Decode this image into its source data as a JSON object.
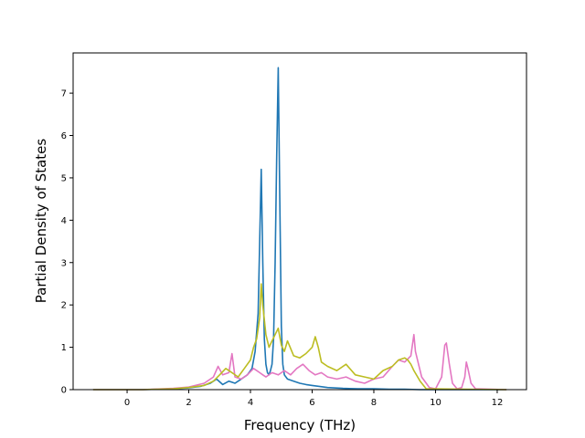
{
  "chart_data": {
    "type": "line",
    "title": "",
    "xlabel": "Frequency (THz)",
    "ylabel": "Partial Density of States",
    "xlim": [
      -1.75,
      12.95
    ],
    "ylim": [
      0,
      7.95
    ],
    "xticks": [
      0,
      2,
      4,
      6,
      8,
      10,
      12
    ],
    "yticks": [
      0,
      1,
      2,
      3,
      4,
      5,
      6,
      7
    ],
    "grid": false,
    "legend": "none",
    "series": [
      {
        "color": "#1f77b4",
        "x": [
          -1.1,
          0.5,
          1.5,
          2.0,
          2.4,
          2.7,
          2.9,
          3.1,
          3.3,
          3.5,
          3.7,
          3.9,
          4.05,
          4.15,
          4.25,
          4.3,
          4.35,
          4.4,
          4.45,
          4.5,
          4.55,
          4.6,
          4.65,
          4.7,
          4.75,
          4.8,
          4.85,
          4.9,
          4.95,
          5.0,
          5.05,
          5.1,
          5.2,
          5.4,
          5.6,
          5.8,
          6.0,
          6.2,
          6.5,
          7.0,
          7.5,
          8.0,
          8.5,
          9.0,
          9.5,
          10.0,
          12.3
        ],
        "y": [
          0,
          0,
          0.02,
          0.04,
          0.08,
          0.15,
          0.25,
          0.12,
          0.2,
          0.15,
          0.25,
          0.35,
          0.5,
          0.9,
          1.8,
          3.5,
          5.2,
          3.0,
          1.2,
          0.6,
          0.4,
          0.35,
          0.45,
          0.6,
          1.2,
          3.0,
          5.5,
          7.6,
          4.5,
          1.5,
          0.6,
          0.35,
          0.25,
          0.2,
          0.15,
          0.12,
          0.1,
          0.08,
          0.05,
          0.03,
          0.02,
          0.02,
          0.01,
          0.01,
          0,
          0,
          0
        ]
      },
      {
        "color": "#e377c2",
        "x": [
          -1.1,
          0.5,
          1.5,
          2.0,
          2.5,
          2.8,
          2.95,
          3.1,
          3.3,
          3.4,
          3.5,
          3.7,
          3.9,
          4.1,
          4.2,
          4.3,
          4.4,
          4.5,
          4.7,
          4.9,
          5.1,
          5.3,
          5.5,
          5.7,
          5.9,
          6.1,
          6.3,
          6.5,
          6.8,
          7.1,
          7.4,
          7.7,
          8.0,
          8.3,
          8.6,
          8.8,
          9.0,
          9.2,
          9.3,
          9.35,
          9.45,
          9.55,
          9.7,
          9.8,
          10.0,
          10.2,
          10.3,
          10.35,
          10.45,
          10.55,
          10.7,
          10.85,
          10.95,
          11.0,
          11.05,
          11.15,
          11.3,
          12.3
        ],
        "y": [
          0,
          0,
          0.03,
          0.06,
          0.15,
          0.3,
          0.55,
          0.35,
          0.4,
          0.85,
          0.3,
          0.25,
          0.35,
          0.5,
          0.45,
          0.4,
          0.35,
          0.3,
          0.4,
          0.35,
          0.45,
          0.35,
          0.5,
          0.6,
          0.45,
          0.35,
          0.4,
          0.3,
          0.25,
          0.3,
          0.2,
          0.15,
          0.25,
          0.3,
          0.55,
          0.7,
          0.65,
          0.8,
          1.3,
          0.9,
          0.6,
          0.3,
          0.15,
          0.05,
          0.02,
          0.3,
          1.05,
          1.1,
          0.6,
          0.15,
          0.02,
          0.05,
          0.3,
          0.65,
          0.5,
          0.15,
          0.02,
          0
        ]
      },
      {
        "color": "#bcbd22",
        "x": [
          -1.1,
          0.5,
          1.5,
          2.0,
          2.5,
          2.8,
          3.0,
          3.2,
          3.4,
          3.6,
          3.8,
          4.0,
          4.1,
          4.2,
          4.3,
          4.35,
          4.4,
          4.5,
          4.6,
          4.7,
          4.8,
          4.9,
          5.0,
          5.1,
          5.2,
          5.4,
          5.6,
          5.8,
          6.0,
          6.1,
          6.2,
          6.3,
          6.5,
          6.8,
          7.1,
          7.4,
          7.7,
          8.0,
          8.3,
          8.6,
          8.8,
          9.0,
          9.1,
          9.2,
          9.3,
          9.5,
          9.7,
          12.3
        ],
        "y": [
          0,
          0,
          0.02,
          0.05,
          0.1,
          0.2,
          0.35,
          0.5,
          0.4,
          0.3,
          0.5,
          0.7,
          1.0,
          1.2,
          1.7,
          2.5,
          2.0,
          1.3,
          1.0,
          1.15,
          1.3,
          1.45,
          1.05,
          0.9,
          1.15,
          0.8,
          0.75,
          0.85,
          1.0,
          1.25,
          1.0,
          0.65,
          0.55,
          0.45,
          0.6,
          0.35,
          0.3,
          0.25,
          0.45,
          0.55,
          0.7,
          0.75,
          0.7,
          0.6,
          0.45,
          0.2,
          0.02,
          0
        ]
      }
    ]
  }
}
